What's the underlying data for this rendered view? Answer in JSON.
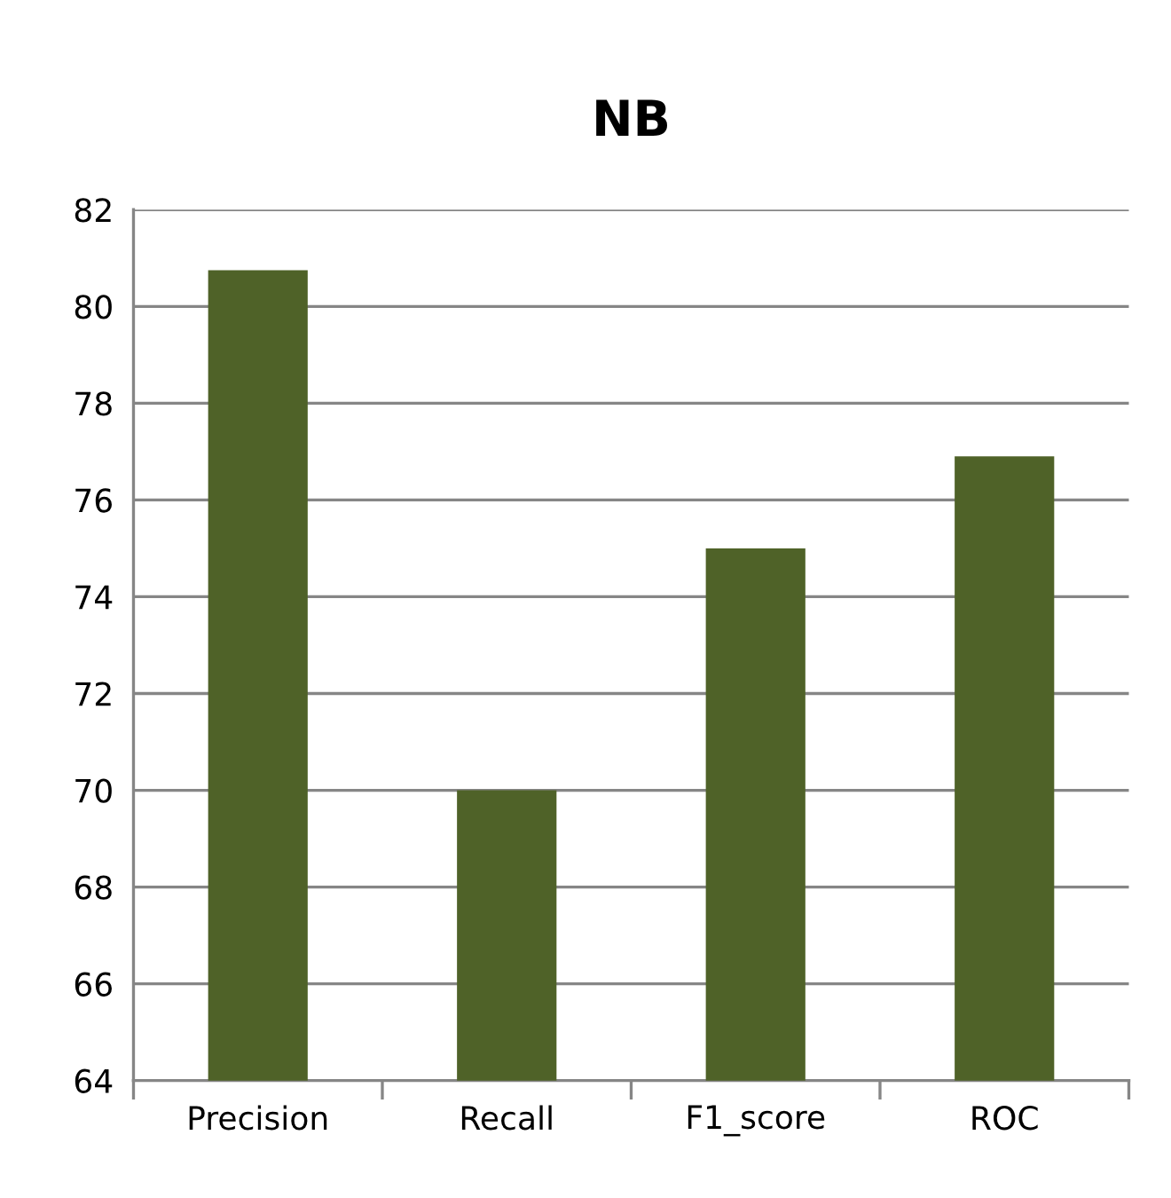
{
  "chart_data": {
    "type": "bar",
    "title": "NB",
    "categories": [
      "Precision",
      "Recall",
      "F1_score",
      "ROC"
    ],
    "values": [
      80.75,
      70.0,
      75.0,
      76.9
    ],
    "color": "#4f6228",
    "ylim": [
      64,
      82
    ],
    "yticks": [
      64,
      66,
      68,
      70,
      72,
      74,
      76,
      78,
      80,
      82
    ],
    "grid": "y",
    "legend": false
  }
}
